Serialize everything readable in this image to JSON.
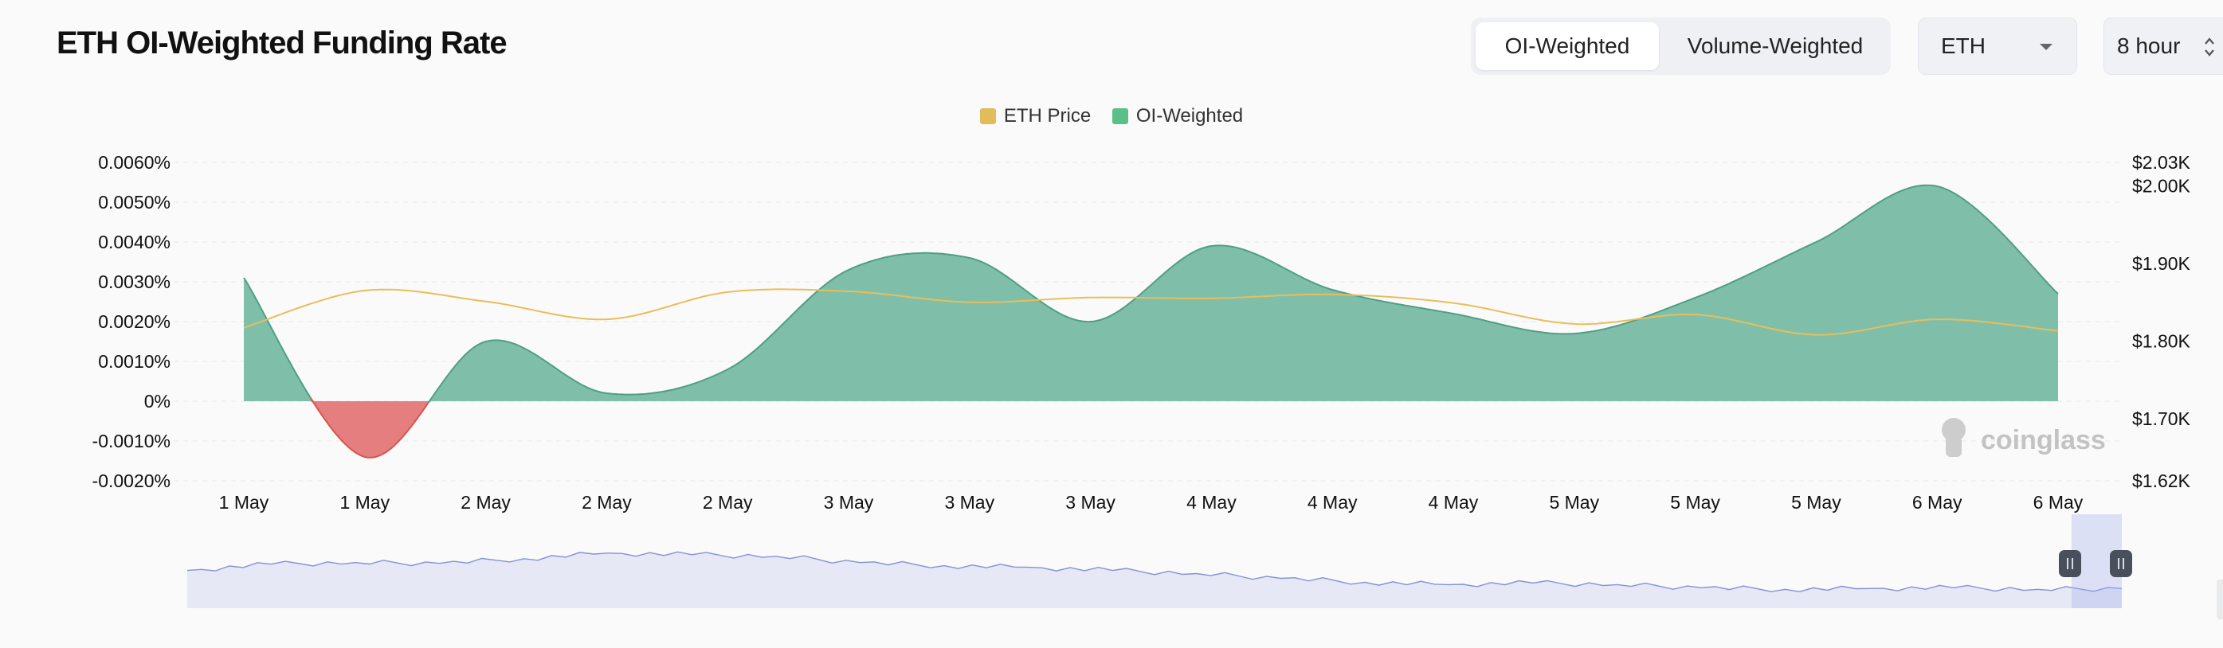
{
  "header": {
    "title": "ETH OI-Weighted Funding Rate",
    "tabs": [
      {
        "label": "OI-Weighted",
        "active": true
      },
      {
        "label": "Volume-Weighted",
        "active": false
      }
    ],
    "coin_select": {
      "value": "ETH"
    },
    "interval_select": {
      "value": "8 hour"
    }
  },
  "watermark": "coinglass",
  "colors": {
    "oi_fill": "#7fbfaa",
    "oi_stroke": "#4f9e86",
    "negative_fill": "#e57e7e",
    "negative_stroke": "#d9534f",
    "price_line": "#e8be5a",
    "navigator_fill": "#e6e8f6",
    "navigator_line": "#8391d6"
  },
  "chart_data": {
    "type": "area",
    "legend": [
      {
        "name": "ETH Price",
        "color": "#e2bc5b"
      },
      {
        "name": "OI-Weighted",
        "color": "#5cbf85"
      }
    ],
    "x_tick_labels": [
      "1 May",
      "1 May",
      "2 May",
      "2 May",
      "2 May",
      "3 May",
      "3 May",
      "3 May",
      "4 May",
      "4 May",
      "4 May",
      "5 May",
      "5 May",
      "5 May",
      "6 May",
      "6 May"
    ],
    "y_left": {
      "min": -0.002,
      "max": 0.006,
      "unit": "%",
      "ticks": [
        0.006,
        0.005,
        0.004,
        0.003,
        0.002,
        0.001,
        0,
        -0.001,
        -0.002
      ],
      "tick_labels": [
        "0.0060%",
        "0.0050%",
        "0.0040%",
        "0.0030%",
        "0.0020%",
        "0.0010%",
        "0%",
        "-0.0010%",
        "-0.0020%"
      ]
    },
    "y_right": {
      "min": 1620,
      "max": 2030,
      "unit": "$",
      "ticks": [
        2030,
        2000,
        1900,
        1800,
        1700,
        1620
      ],
      "tick_labels": [
        "$2.03K",
        "$2.00K",
        "$1.90K",
        "$1.80K",
        "$1.70K",
        "$1.62K"
      ]
    },
    "series": [
      {
        "name": "OI-Weighted",
        "axis": "left",
        "values": [
          0.0031,
          -0.0014,
          0.0015,
          0.0002,
          0.0008,
          0.0033,
          0.0036,
          0.002,
          0.0039,
          0.0028,
          0.0022,
          0.0017,
          0.0026,
          0.004,
          0.0054,
          0.0027
        ]
      },
      {
        "name": "ETH Price",
        "axis": "right",
        "values": [
          1817,
          1865,
          1851,
          1828,
          1863,
          1864,
          1850,
          1856,
          1855,
          1860,
          1849,
          1822,
          1834,
          1808,
          1828,
          1813
        ]
      }
    ],
    "navigator": {
      "values": [
        0.48,
        0.56,
        0.58,
        0.57,
        0.63,
        0.7,
        0.68,
        0.66,
        0.58,
        0.54,
        0.52,
        0.48,
        0.44,
        0.38,
        0.33,
        0.3,
        0.32,
        0.3,
        0.26,
        0.24,
        0.25,
        0.26,
        0.24,
        0.25
      ],
      "selection_start": 0.974,
      "selection_end": 1.0
    }
  }
}
